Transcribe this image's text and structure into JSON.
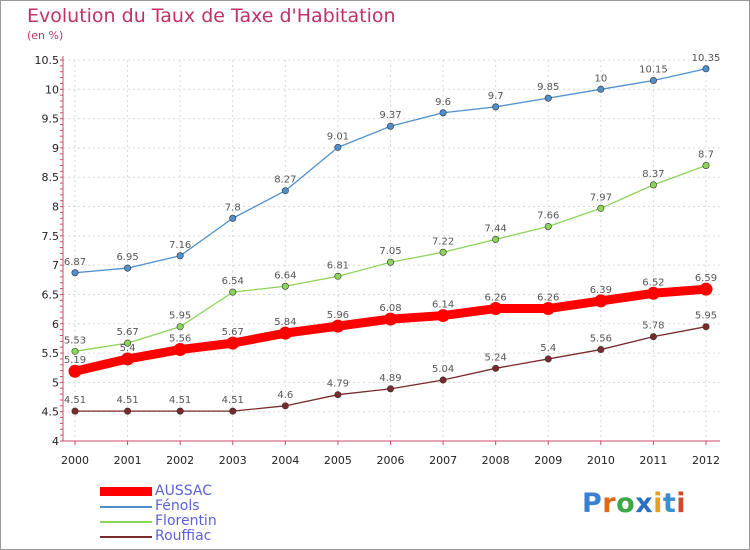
{
  "chart_data": {
    "type": "line",
    "title": "Evolution du Taux de Taxe d'Habitation",
    "subtitle": "(en %)",
    "x": [
      "2000",
      "2001",
      "2002",
      "2003",
      "2004",
      "2005",
      "2006",
      "2007",
      "2008",
      "2009",
      "2010",
      "2011",
      "2012"
    ],
    "ylim": [
      4,
      10.5
    ],
    "y_ticks": [
      "4",
      "4.5",
      "5",
      "5.5",
      "6",
      "6.5",
      "7",
      "7.5",
      "8",
      "8.5",
      "9",
      "9.5",
      "10",
      "10.5"
    ],
    "grid": true,
    "legend_position": "bottom-left",
    "series": [
      {
        "name": "AUSSAC",
        "color": "#ff0000",
        "values": [
          5.19,
          5.4,
          5.56,
          5.67,
          5.84,
          5.96,
          6.08,
          6.14,
          6.26,
          6.26,
          6.39,
          6.52,
          6.59
        ],
        "labels": [
          "5.19",
          "5.4",
          "5.56",
          "5.67",
          "5.84",
          "5.96",
          "6.08",
          "6.14",
          "6.26",
          "6.26",
          "6.39",
          "6.52",
          "6.59"
        ]
      },
      {
        "name": "Fénols",
        "color": "#4f8fcb",
        "values": [
          6.87,
          6.95,
          7.16,
          7.8,
          8.27,
          9.01,
          9.37,
          9.6,
          9.7,
          9.85,
          10,
          10.15,
          10.35
        ],
        "labels": [
          "6.87",
          "6.95",
          "7.16",
          "7.8",
          "8.27",
          "9.01",
          "9.37",
          "9.6",
          "9.7",
          "9.85",
          "10",
          "10.15",
          "10.35"
        ]
      },
      {
        "name": "Florentin",
        "color": "#8cd45a",
        "values": [
          5.53,
          5.67,
          5.95,
          6.54,
          6.64,
          6.81,
          7.05,
          7.22,
          7.44,
          7.66,
          7.97,
          8.37,
          8.7
        ],
        "labels": [
          "5.53",
          "5.67",
          "5.95",
          "6.54",
          "6.64",
          "6.81",
          "7.05",
          "7.22",
          "7.44",
          "7.66",
          "7.97",
          "8.37",
          "8.7"
        ]
      },
      {
        "name": "Rouffiac",
        "color": "#7a2a2a",
        "values": [
          4.51,
          4.51,
          4.51,
          4.51,
          4.6,
          4.79,
          4.89,
          5.04,
          5.24,
          5.4,
          5.56,
          5.78,
          5.95
        ],
        "labels": [
          "4.51",
          "4.51",
          "4.51",
          "4.51",
          "4.6",
          "4.79",
          "4.89",
          "5.04",
          "5.24",
          "5.4",
          "5.56",
          "5.78",
          "5.95"
        ]
      }
    ]
  },
  "brand": {
    "letters": [
      "P",
      "r",
      "o",
      "x",
      "i",
      "t",
      "i"
    ],
    "colors": [
      "#3a7fd0",
      "#e06a1a",
      "#39a845",
      "#2a6fc0",
      "#e0a020",
      "#3a8fd0",
      "#d04a2a"
    ]
  }
}
